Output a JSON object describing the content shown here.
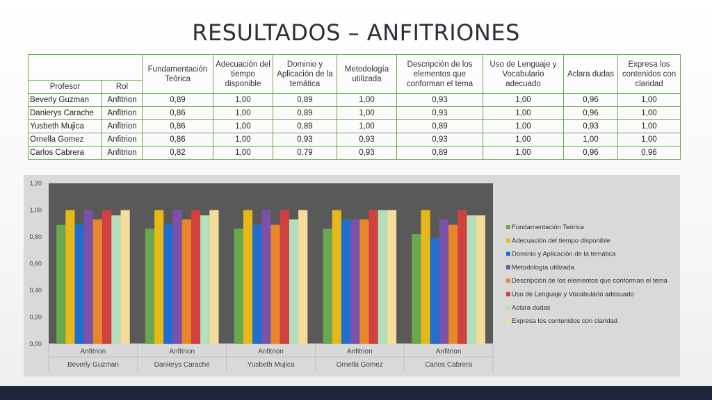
{
  "slide": {
    "title": "RESULTADOS – ANFITRIONES"
  },
  "table": {
    "headers": {
      "profesor": "Profesor",
      "rol": "Rol",
      "criteria": [
        "Fundamentación Teórica",
        "Adecuación del tiempo disponible",
        "Dominio y Aplicación de la temática",
        "Metodología utilizada",
        "Descripción de los elementos que conforman el tema",
        "Uso de Lenguaje y Vocabulario adecuado",
        "Aclara dudas",
        "Expresa los contenidos con claridad"
      ]
    },
    "rows": [
      {
        "profesor": "Beverly Guzman",
        "rol": "Anfitrion",
        "values": [
          "0,89",
          "1,00",
          "0,89",
          "1,00",
          "0,93",
          "1,00",
          "0,96",
          "1,00"
        ]
      },
      {
        "profesor": "Danierys Carache",
        "rol": "Anfitrion",
        "values": [
          "0,86",
          "1,00",
          "0,89",
          "1,00",
          "0,93",
          "1,00",
          "0,96",
          "1,00"
        ]
      },
      {
        "profesor": "Yusbeth Mujica",
        "rol": "Anfitrion",
        "values": [
          "0,86",
          "1,00",
          "0,89",
          "1,00",
          "0,89",
          "1,00",
          "0,93",
          "1,00"
        ]
      },
      {
        "profesor": "Ornella Gomez",
        "rol": "Anfitrion",
        "values": [
          "0,86",
          "1,00",
          "0,93",
          "0,93",
          "0,93",
          "1,00",
          "1,00",
          "1,00"
        ]
      },
      {
        "profesor": "Carlos Cabrera",
        "rol": "Anfitrion",
        "values": [
          "0,82",
          "1,00",
          "0,79",
          "0,93",
          "0,89",
          "1,00",
          "0,96",
          "0,96"
        ]
      }
    ]
  },
  "chart_data": {
    "type": "bar",
    "categories": [
      {
        "role": "Anfitrion",
        "name": "Beverly Guzman"
      },
      {
        "role": "Anfitrion",
        "name": "Danierys Carache"
      },
      {
        "role": "Anfitrion",
        "name": "Yusbeth Mujica"
      },
      {
        "role": "Anfitrion",
        "name": "Ornella Gomez"
      },
      {
        "role": "Anfitrion",
        "name": "Carlos Cabrera"
      }
    ],
    "series": [
      {
        "name": "Fundamentación Teórica",
        "color": "#6aa84f",
        "values": [
          0.89,
          0.86,
          0.86,
          0.86,
          0.82
        ]
      },
      {
        "name": "Adecuación del tiempo disponible",
        "color": "#e6b818",
        "values": [
          1.0,
          1.0,
          1.0,
          1.0,
          1.0
        ]
      },
      {
        "name": "Dominio y Aplicación de la temática",
        "color": "#1f6fd1",
        "values": [
          0.89,
          0.89,
          0.89,
          0.93,
          0.79
        ]
      },
      {
        "name": "Metodología utilizada",
        "color": "#7b52a8",
        "values": [
          1.0,
          1.0,
          1.0,
          0.93,
          0.93
        ]
      },
      {
        "name": "Descripción de los elementos que conforman el tema",
        "color": "#e8862a",
        "values": [
          0.93,
          0.93,
          0.89,
          0.93,
          0.89
        ]
      },
      {
        "name": "Uso de Lenguaje y Vocabulario adecuado",
        "color": "#d24040",
        "values": [
          1.0,
          1.0,
          1.0,
          1.0,
          1.0
        ]
      },
      {
        "name": "Aclara dudas",
        "color": "#b3e0bc",
        "values": [
          0.96,
          0.96,
          0.93,
          1.0,
          0.96
        ]
      },
      {
        "name": "Expresa los contenidos con claridad",
        "color": "#f5dc9a",
        "values": [
          1.0,
          1.0,
          1.0,
          1.0,
          0.96
        ]
      }
    ],
    "ylim": [
      0,
      1.2
    ],
    "yticks": [
      0,
      0.2,
      0.4,
      0.6,
      0.8,
      1.0,
      1.2
    ],
    "ytick_labels": [
      "0,00",
      "0,20",
      "0,40",
      "0,60",
      "0,80",
      "1,00",
      "1,20"
    ],
    "grid": false,
    "legend_position": "right",
    "title": "",
    "xlabel": "",
    "ylabel": ""
  },
  "colors": {
    "plot_bg": "#595959",
    "chart_bg": "#d9d9d9",
    "table_border": "#6aa84f",
    "footer_bar": "#1c2838"
  }
}
